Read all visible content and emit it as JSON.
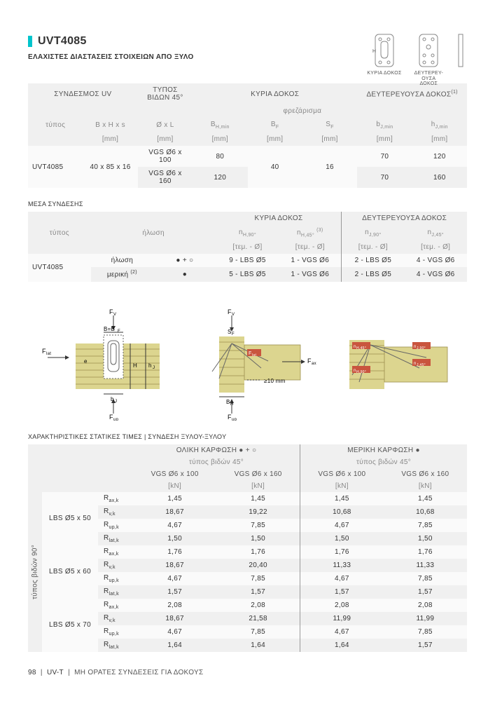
{
  "header": {
    "title": "UVT4085",
    "subtitle": "ΕΛΑΧΙΣΤΕΣ ΔΙΑΣΤΑΣΕΙΣ ΣΤΟΙΧΕΙΩΝ ΑΠΟ ΞΥΛΟ",
    "icons": {
      "h_label": "H",
      "b_label": "B",
      "s_label": "s",
      "main_beam": "ΚΥΡΙΑ ΔΟΚΟΣ",
      "secondary_beam": "ΔΕΥΤΕΡΕΥ-\nΟΥΣΑ\nΔΟΚΟΣ"
    }
  },
  "table1": {
    "group_headers": {
      "connector": "ΣΥΝΔΕΣΜΟΣ UV",
      "screw_type": "ΤΥΠΟΣ ΒΙΔΩΝ 45°",
      "main_beam": "ΚΥΡΙΑ ΔΟΚΟΣ",
      "secondary_beam": "ΔΕΥΤΕΡΕΥΟΥΣΑ ΔΟΚΟΣ(1)",
      "routing": "φρεζάρισμα"
    },
    "col_headers": {
      "type": "τύπος",
      "bhs": "B x H x s",
      "ol": "Ø x L",
      "bhmin": "BH,min",
      "bf": "BF",
      "sf": "SF",
      "bjmin": "bJ,min",
      "hjmin": "hJ,min"
    },
    "units": "[mm]",
    "rows": [
      {
        "type": "UVT4085",
        "bhs": "40 x 85 x 16",
        "ol": "VGS Ø6 x 100",
        "bhmin": "80",
        "bf": "40",
        "sf": "16",
        "bjmin": "70",
        "hjmin": "120"
      },
      {
        "type": "",
        "bhs": "",
        "ol": "VGS Ø6 x 160",
        "bhmin": "120",
        "bf": "",
        "sf": "",
        "bjmin": "70",
        "hjmin": "160"
      }
    ]
  },
  "means_label": "ΜΕΣΑ ΣΥΝΔΕΣΗΣ",
  "table2": {
    "group_headers": {
      "main_beam": "ΚΥΡΙΑ ΔΟΚΟΣ",
      "secondary_beam": "ΔΕΥΤΕΡΕΥΟΥΣΑ ΔΟΚΟΣ"
    },
    "col_headers": {
      "type": "τύπος",
      "nailing": "ήλωση",
      "nh90": "nH,90°",
      "nh45": "nH,45° (3)",
      "nj90": "nJ,90°",
      "nj45": "nJ,45°"
    },
    "units": "[τεμ. - Ø]",
    "rows": [
      {
        "type": "UVT4085",
        "nailing": "ήλωση",
        "sym": "● + ○",
        "nh90": "9 - LBS Ø5",
        "nh45": "1 - VGS Ø6",
        "nj90": "2 - LBS Ø5",
        "nj45": "4 - VGS Ø6"
      },
      {
        "type": "",
        "nailing": "μερική (2)",
        "sym": "●",
        "nh90": "5 - LBS Ø5",
        "nh45": "1 - VGS Ø6",
        "nj90": "2 - LBS Ø5",
        "nj45": "4 - VGS Ø6"
      }
    ]
  },
  "diagrams": {
    "labels": {
      "fv": "FV",
      "fup": "Fup",
      "flat": "Flat",
      "fax": "Fax",
      "bbf": "B=BF",
      "h": "H",
      "hj": "hJ",
      "bj": "bJ",
      "e": "e",
      "sf": "SF",
      "bh": "BH",
      "min10": "≥10 mm",
      "nh45": "nH,45°",
      "nh90": "nH,90°",
      "nj90": "nJ,90°",
      "nj45": "nJ,45°"
    }
  },
  "char_title": "ΧΑΡΑΚΤΗΡΙΣΤΙΚΕΣ ΣΤΑΤΙΚΕΣ ΤΙΜΕΣ | ΣΥΝΔΕΣΗ ΞΥΛΟΥ-ΞΥΛΟΥ",
  "table3": {
    "group_headers": {
      "full": "ΟΛΙΚΗ ΚΑΡΦΩΣΗ ● + ○",
      "partial": "ΜΕΡΙΚΗ ΚΑΡΦΩΣΗ ●",
      "screw_type": "τύπος βιδών 45°"
    },
    "col_headers": {
      "vgs100": "VGS Ø6 x 100",
      "vgs160": "VGS Ø6 x 160"
    },
    "kn": "[kN]",
    "side_label": "τύπος βιδών 90°",
    "row_groups": [
      {
        "label": "LBS Ø5 x 50",
        "rows": [
          {
            "k": "Rax,k",
            "v": [
              "1,45",
              "1,45",
              "1,45",
              "1,45"
            ]
          },
          {
            "k": "Rv,k",
            "v": [
              "18,67",
              "19,22",
              "10,68",
              "10,68"
            ]
          },
          {
            "k": "Rup,k",
            "v": [
              "4,67",
              "7,85",
              "4,67",
              "7,85"
            ]
          },
          {
            "k": "Rlat,k",
            "v": [
              "1,50",
              "1,50",
              "1,50",
              "1,50"
            ]
          }
        ]
      },
      {
        "label": "LBS Ø5 x 60",
        "rows": [
          {
            "k": "Rax,k",
            "v": [
              "1,76",
              "1,76",
              "1,76",
              "1,76"
            ]
          },
          {
            "k": "Rv,k",
            "v": [
              "18,67",
              "20,40",
              "11,33",
              "11,33"
            ]
          },
          {
            "k": "Rup,k",
            "v": [
              "4,67",
              "7,85",
              "4,67",
              "7,85"
            ]
          },
          {
            "k": "Rlat,k",
            "v": [
              "1,57",
              "1,57",
              "1,57",
              "1,57"
            ]
          }
        ]
      },
      {
        "label": "LBS Ø5 x 70",
        "rows": [
          {
            "k": "Rax,k",
            "v": [
              "2,08",
              "2,08",
              "2,08",
              "2,08"
            ]
          },
          {
            "k": "Rv,k",
            "v": [
              "18,67",
              "21,58",
              "11,99",
              "11,99"
            ]
          },
          {
            "k": "Rup,k",
            "v": [
              "4,67",
              "7,85",
              "4,67",
              "7,85"
            ]
          },
          {
            "k": "Rlat,k",
            "v": [
              "1,64",
              "1,64",
              "1,64",
              "1,57"
            ]
          }
        ]
      }
    ]
  },
  "footer": {
    "page": "98",
    "code": "UV-T",
    "text": "ΜΗ ΟΡΑΤΕΣ ΣΥΝΔΕΣΕΙΣ  ΓΙΑ ΔΟΚΟΥΣ"
  },
  "colors": {
    "accent": "#00c4cc",
    "wood": "#dcd58f",
    "woodline": "#9b8e4e",
    "greybg": "#f0f0f0"
  }
}
